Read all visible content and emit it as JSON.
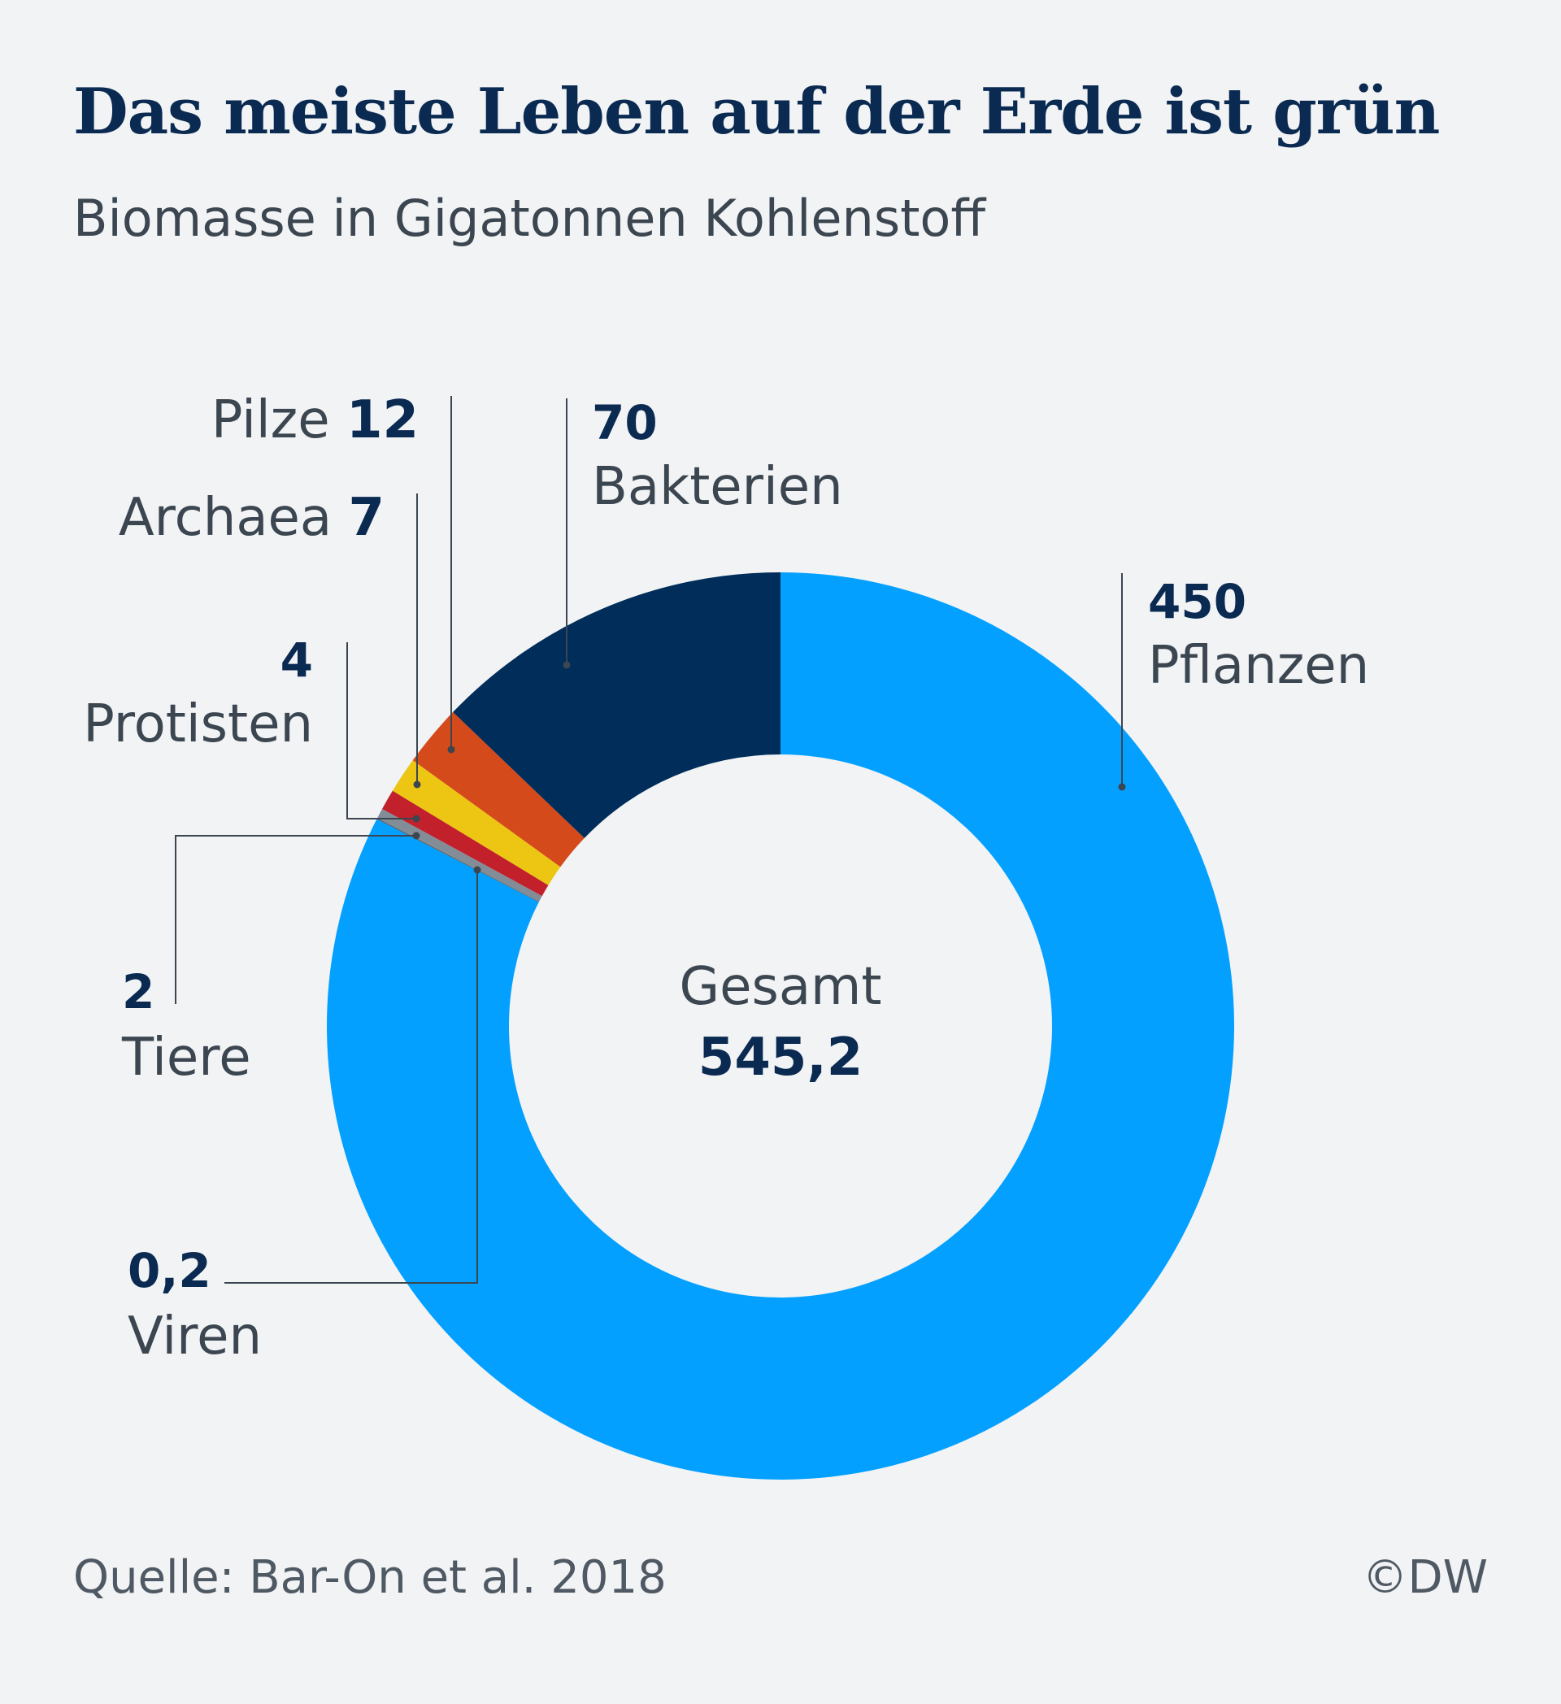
{
  "title": "Das meiste Leben auf der Erde ist grün",
  "subtitle": "Biomasse in Gigatonnen Kohlenstoff",
  "source": "Quelle: Bar-On et al. 2018",
  "credit": "©DW",
  "colors": {
    "Pflanzen": "#03a0ff",
    "Bakterien": "#002d5a",
    "Pilze": "#d54a1b",
    "Archaea": "#ecc613",
    "Protisten": "#c2202b",
    "Tiere": "#838d97",
    "Viren": "#545b63"
  },
  "chart_data": {
    "type": "pie",
    "donut": true,
    "title": "Das meiste Leben auf der Erde ist grün",
    "subtitle": "Biomasse in Gigatonnen Kohlenstoff",
    "unit": "Gigatonnen Kohlenstoff",
    "center_label": "Gesamt",
    "center_value": "545,2",
    "slices": [
      {
        "name": "Pflanzen",
        "value": 450,
        "value_label": "450"
      },
      {
        "name": "Viren",
        "value": 0.2,
        "value_label": "0,2"
      },
      {
        "name": "Tiere",
        "value": 2,
        "value_label": "2"
      },
      {
        "name": "Protisten",
        "value": 4,
        "value_label": "4"
      },
      {
        "name": "Archaea",
        "value": 7,
        "value_label": "7"
      },
      {
        "name": "Pilze",
        "value": 12,
        "value_label": "12"
      },
      {
        "name": "Bakterien",
        "value": 70,
        "value_label": "70"
      }
    ]
  }
}
